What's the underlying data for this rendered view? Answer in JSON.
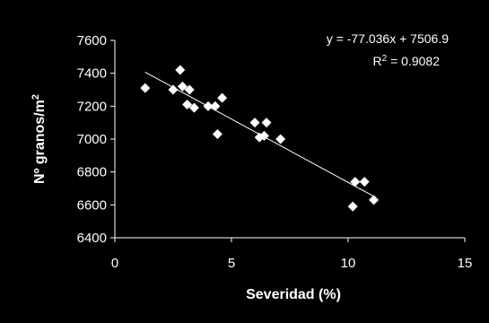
{
  "chart_data": {
    "type": "scatter",
    "xlabel": "Severidad (%)",
    "ylabel": "Nº granos/m",
    "ylabel_superscript": "2",
    "xlim": [
      0,
      15
    ],
    "ylim": [
      6400,
      7600
    ],
    "xticks": [
      0,
      5,
      10,
      15
    ],
    "yticks": [
      6400,
      6600,
      6800,
      7000,
      7200,
      7400,
      7600
    ],
    "grid": false,
    "series": [
      {
        "marker": "diamond",
        "color": "#ffffff",
        "points": [
          {
            "x": 1.3,
            "y": 7310
          },
          {
            "x": 2.5,
            "y": 7300
          },
          {
            "x": 2.8,
            "y": 7420
          },
          {
            "x": 2.9,
            "y": 7320
          },
          {
            "x": 3.1,
            "y": 7210
          },
          {
            "x": 3.2,
            "y": 7300
          },
          {
            "x": 3.4,
            "y": 7190
          },
          {
            "x": 4.0,
            "y": 7200
          },
          {
            "x": 4.3,
            "y": 7200
          },
          {
            "x": 4.4,
            "y": 7030
          },
          {
            "x": 4.6,
            "y": 7250
          },
          {
            "x": 6.0,
            "y": 7100
          },
          {
            "x": 6.2,
            "y": 7010
          },
          {
            "x": 6.4,
            "y": 7020
          },
          {
            "x": 6.5,
            "y": 7100
          },
          {
            "x": 7.1,
            "y": 7000
          },
          {
            "x": 10.2,
            "y": 6590
          },
          {
            "x": 10.3,
            "y": 6740
          },
          {
            "x": 10.7,
            "y": 6740
          },
          {
            "x": 11.1,
            "y": 6630
          }
        ]
      }
    ],
    "trendline": {
      "slope": -77.036,
      "intercept": 7506.9,
      "x_range": [
        1.3,
        11.1
      ],
      "color": "#ffffff"
    },
    "annotations": {
      "equation": "y = -77.036x + 7506.9",
      "r2_label": "R",
      "r2_sup": "2",
      "r2_value": " = 0.9082"
    }
  }
}
